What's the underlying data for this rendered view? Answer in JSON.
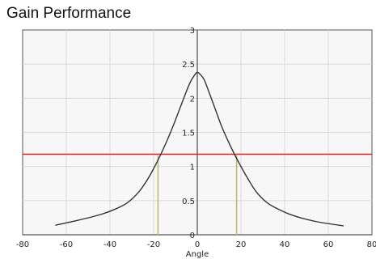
{
  "chart_data": {
    "type": "line",
    "title": "Gain Performance",
    "xlabel": "Angle",
    "ylabel": "",
    "xlim": [
      -80,
      80
    ],
    "ylim": [
      0,
      3
    ],
    "x_ticks": [
      "-80",
      "-60",
      "-40",
      "-20",
      "0",
      "20",
      "40",
      "60",
      "80"
    ],
    "y_ticks": [
      "0",
      "0.5",
      "1",
      "1.5",
      "2",
      "2.5",
      "3"
    ],
    "grid": true,
    "legend": "none",
    "series": [
      {
        "x": [
          -65,
          -55,
          -45,
          -38,
          -32,
          -27,
          -23,
          -20,
          -17,
          -14,
          -11,
          -8,
          -5,
          -3,
          -1,
          0,
          1,
          3,
          5,
          8,
          11,
          14,
          17,
          20,
          23,
          27,
          32,
          38,
          45,
          55,
          67
        ],
        "values": [
          0.14,
          0.21,
          0.29,
          0.37,
          0.47,
          0.62,
          0.8,
          0.97,
          1.16,
          1.37,
          1.6,
          1.85,
          2.1,
          2.25,
          2.35,
          2.38,
          2.36,
          2.28,
          2.12,
          1.86,
          1.6,
          1.38,
          1.18,
          1.0,
          0.83,
          0.63,
          0.47,
          0.36,
          0.27,
          0.19,
          0.13
        ],
        "color": "#333333"
      }
    ],
    "reference_line": {
      "y": 1.18,
      "color": "#e02020"
    },
    "marker_lines": [
      {
        "x": -18,
        "y": 1.16,
        "color": "#b8b86a"
      },
      {
        "x": 18,
        "y": 1.16,
        "color": "#b8b86a"
      }
    ],
    "colors": {
      "background": "#ffffff",
      "plot_background": "#f7f7f7",
      "grid": "#d8d8d8",
      "axis": "#555555"
    }
  }
}
